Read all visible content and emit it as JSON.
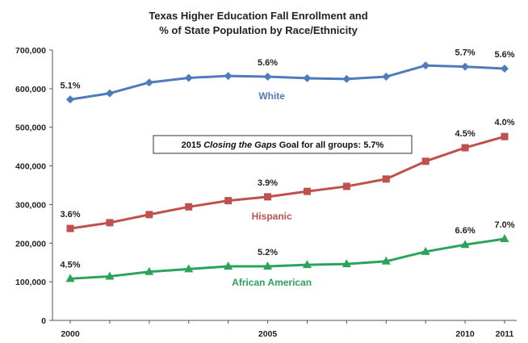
{
  "chart_data": {
    "type": "line",
    "title": [
      "Texas Higher Education Fall Enrollment and",
      "% of State Population by Race/Ethnicity"
    ],
    "x": [
      2000,
      2001,
      2002,
      2003,
      2004,
      2005,
      2006,
      2007,
      2008,
      2009,
      2010,
      2011
    ],
    "xticks": [
      "2000",
      "2005",
      "2010",
      "2011"
    ],
    "ylim": [
      0,
      700000
    ],
    "yticks": [
      "0",
      "100,000",
      "200,000",
      "300,000",
      "400,000",
      "500,000",
      "600,000",
      "700,000"
    ],
    "series": [
      {
        "name": "White",
        "color": "#4F7BBE",
        "marker": "diamond",
        "values": [
          572000,
          588000,
          616000,
          628000,
          633000,
          631000,
          627000,
          625000,
          631000,
          660000,
          657000,
          652000
        ],
        "labels": [
          {
            "x": 2000,
            "text": "5.1%"
          },
          {
            "x": 2005,
            "text": "5.6%"
          },
          {
            "x": 2010,
            "text": "5.7%"
          },
          {
            "x": 2011,
            "text": "5.6%"
          }
        ]
      },
      {
        "name": "Hispanic",
        "color": "#C0504D",
        "marker": "square",
        "values": [
          238000,
          253000,
          274000,
          294000,
          310000,
          320000,
          334000,
          347000,
          366000,
          412000,
          447000,
          476000
        ],
        "labels": [
          {
            "x": 2000,
            "text": "3.6%"
          },
          {
            "x": 2005,
            "text": "3.9%"
          },
          {
            "x": 2010,
            "text": "4.5%"
          },
          {
            "x": 2011,
            "text": "4.0%"
          }
        ]
      },
      {
        "name": "African American",
        "color": "#2BA35A",
        "marker": "triangle",
        "values": [
          108000,
          114000,
          126000,
          133000,
          140000,
          140000,
          144000,
          146000,
          153000,
          178000,
          196000,
          211000
        ],
        "labels": [
          {
            "x": 2000,
            "text": "4.5%"
          },
          {
            "x": 2005,
            "text": "5.2%"
          },
          {
            "x": 2010,
            "text": "6.6%"
          },
          {
            "x": 2011,
            "text": "7.0%"
          }
        ]
      }
    ],
    "annotation": {
      "prefix": "2015 ",
      "italic": "Closing the Gaps",
      "suffix": " Goal for all groups: 5.7%"
    },
    "grid": false
  }
}
